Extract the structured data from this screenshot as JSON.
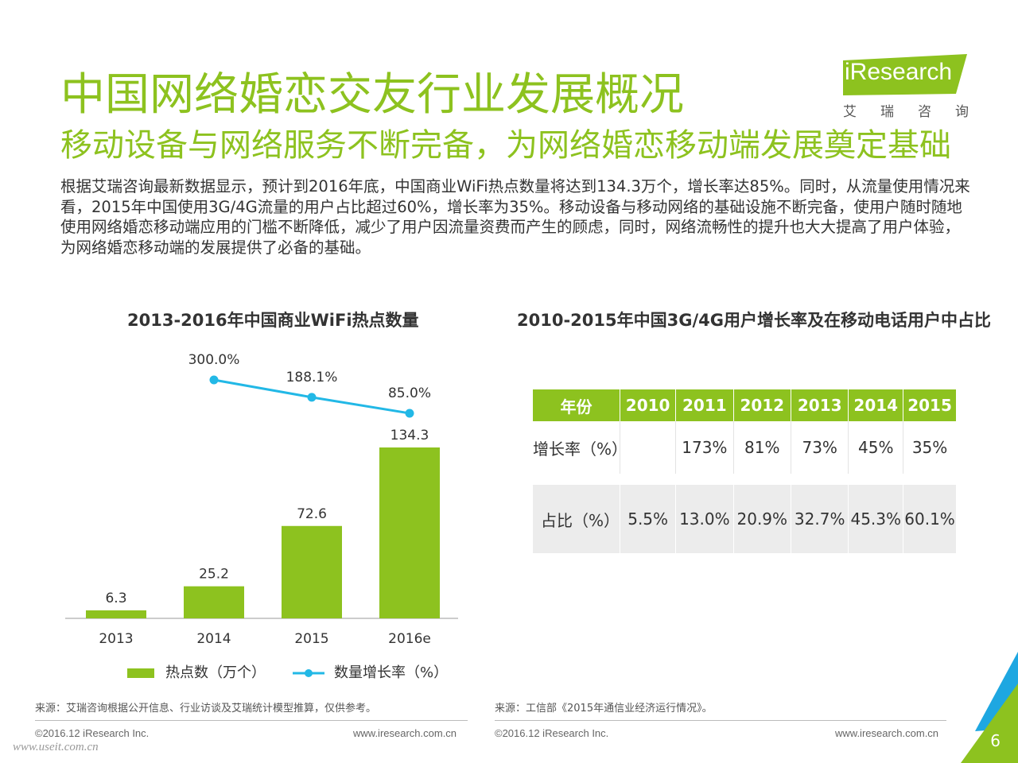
{
  "header": {
    "title": "中国网络婚恋交友行业发展概况",
    "subtitle": "移动设备与网络服务不断完备，为网络婚恋移动端发展奠定基础",
    "body": "根据艾瑞咨询最新数据显示，预计到2016年底，中国商业WiFi热点数量将达到134.3万个，增长率达85%。同时，从流量使用情况来看，2015年中国使用3G/4G流量的用户占比超过60%，增长率为35%。移动设备与移动网络的基础设施不断完备，使用户随时随地使用网络婚恋移动端应用的门槛不断降低，减少了用户因流量资费而产生的顾虑，同时，网络流畅性的提升也大大提高了用户体验，为网络婚恋移动端的发展提供了必备的基础。"
  },
  "logo": {
    "name": "iResearch",
    "cn": "艾瑞咨询"
  },
  "colors": {
    "accent": "#8dc21f",
    "line": "#22b8e6",
    "corner_green": "#8dc21f",
    "corner_blue": "#1ea7e1"
  },
  "chart_data": [
    {
      "type": "bar",
      "title": "2013-2016年中国商业WiFi热点数量",
      "categories": [
        "2013",
        "2014",
        "2015",
        "2016e"
      ],
      "series": [
        {
          "name": "热点数（万个）",
          "type": "bar",
          "values": [
            6.3,
            25.2,
            72.6,
            134.3
          ],
          "labels": [
            "6.3",
            "25.2",
            "72.6",
            "134.3"
          ]
        },
        {
          "name": "数量增长率（%）",
          "type": "line",
          "x": [
            "2014",
            "2015",
            "2016e"
          ],
          "values": [
            300.0,
            188.1,
            85.0
          ],
          "labels": [
            "300.0%",
            "188.1%",
            "85.0%"
          ]
        }
      ],
      "legend_position": "bottom",
      "grid": false
    },
    {
      "type": "table",
      "title": "2010-2015年中国3G/4G用户增长率及在移动电话用户中占比",
      "columns": [
        "年份",
        "2010",
        "2011",
        "2012",
        "2013",
        "2014",
        "2015"
      ],
      "rows": [
        [
          "增长率（%）",
          "",
          "173%",
          "81%",
          "73%",
          "45%",
          "35%"
        ],
        [
          "占比（%）",
          "5.5%",
          "13.0%",
          "20.9%",
          "32.7%",
          "45.3%",
          "60.1%"
        ]
      ]
    }
  ],
  "sources": {
    "left": "来源：艾瑞咨询根据公开信息、行业访谈及艾瑞统计模型推算，仅供参考。",
    "right": "来源：工信部《2015年通信业经济运行情况》。"
  },
  "footer": {
    "copyright": "©2016.12 iResearch Inc.",
    "url": "www.iresearch.com.cn",
    "watermark": "www.useit.com.cn",
    "page": "6"
  }
}
